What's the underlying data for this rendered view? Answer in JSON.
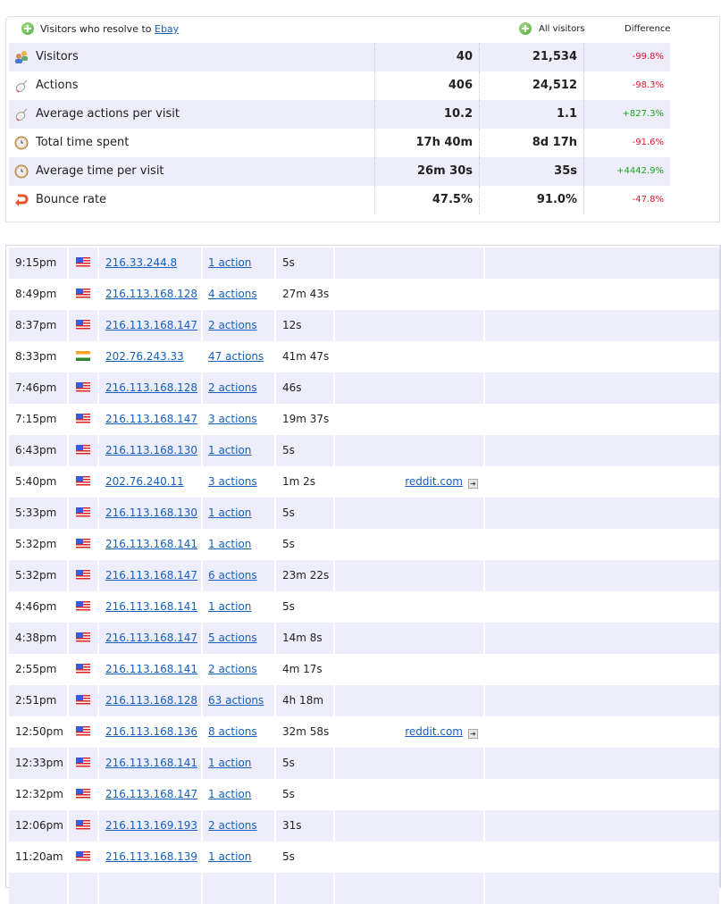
{
  "header": {
    "title": "Visitors who resolve to",
    "segment_link": "Ebay",
    "all_visitors": "All visitors",
    "difference": "Difference"
  },
  "metrics": [
    {
      "icon": "visitors-icon",
      "label": "Visitors",
      "segment": "40",
      "all": "21,534",
      "diff": "-99.8%",
      "trend": "neg"
    },
    {
      "icon": "mouse-icon",
      "label": "Actions",
      "segment": "406",
      "all": "24,512",
      "diff": "-98.3%",
      "trend": "neg"
    },
    {
      "icon": "mouse-icon",
      "label": "Average actions per visit",
      "segment": "10.2",
      "all": "1.1",
      "diff": "+827.3%",
      "trend": "pos"
    },
    {
      "icon": "clock-icon",
      "label": "Total time spent",
      "segment": "17h 40m",
      "all": "8d 17h",
      "diff": "-91.6%",
      "trend": "neg"
    },
    {
      "icon": "clock-icon",
      "label": "Average time per visit",
      "segment": "26m 30s",
      "all": "35s",
      "diff": "+4442.9%",
      "trend": "pos"
    },
    {
      "icon": "bounce-icon",
      "label": "Bounce rate",
      "segment": "47.5%",
      "all": "91.0%",
      "diff": "-47.8%",
      "trend": "neg"
    }
  ],
  "visits": [
    {
      "time": "9:15pm",
      "flag": "us",
      "ip": "216.33.244.8",
      "actions": "1 action",
      "duration": "5s",
      "referrer": ""
    },
    {
      "time": "8:49pm",
      "flag": "us",
      "ip": "216.113.168.128",
      "actions": "4 actions",
      "duration": "27m 43s",
      "referrer": ""
    },
    {
      "time": "8:37pm",
      "flag": "us",
      "ip": "216.113.168.147",
      "actions": "2 actions",
      "duration": "12s",
      "referrer": ""
    },
    {
      "time": "8:33pm",
      "flag": "in",
      "ip": "202.76.243.33",
      "actions": "47 actions",
      "duration": "41m 47s",
      "referrer": ""
    },
    {
      "time": "7:46pm",
      "flag": "us",
      "ip": "216.113.168.128",
      "actions": "2 actions",
      "duration": "46s",
      "referrer": ""
    },
    {
      "time": "7:15pm",
      "flag": "us",
      "ip": "216.113.168.147",
      "actions": "3 actions",
      "duration": "19m 37s",
      "referrer": ""
    },
    {
      "time": "6:43pm",
      "flag": "us",
      "ip": "216.113.168.130",
      "actions": "1 action",
      "duration": "5s",
      "referrer": ""
    },
    {
      "time": "5:40pm",
      "flag": "us",
      "ip": "202.76.240.11",
      "actions": "3 actions",
      "duration": "1m 2s",
      "referrer": "reddit.com"
    },
    {
      "time": "5:33pm",
      "flag": "us",
      "ip": "216.113.168.130",
      "actions": "1 action",
      "duration": "5s",
      "referrer": ""
    },
    {
      "time": "5:32pm",
      "flag": "us",
      "ip": "216.113.168.141",
      "actions": "1 action",
      "duration": "5s",
      "referrer": ""
    },
    {
      "time": "5:32pm",
      "flag": "us",
      "ip": "216.113.168.147",
      "actions": "6 actions",
      "duration": "23m 22s",
      "referrer": ""
    },
    {
      "time": "4:46pm",
      "flag": "us",
      "ip": "216.113.168.141",
      "actions": "1 action",
      "duration": "5s",
      "referrer": ""
    },
    {
      "time": "4:38pm",
      "flag": "us",
      "ip": "216.113.168.147",
      "actions": "5 actions",
      "duration": "14m 8s",
      "referrer": ""
    },
    {
      "time": "2:55pm",
      "flag": "us",
      "ip": "216.113.168.141",
      "actions": "2 actions",
      "duration": "4m 17s",
      "referrer": ""
    },
    {
      "time": "2:51pm",
      "flag": "us",
      "ip": "216.113.168.128",
      "actions": "63 actions",
      "duration": "4h 18m",
      "referrer": ""
    },
    {
      "time": "12:50pm",
      "flag": "us",
      "ip": "216.113.168.136",
      "actions": "8 actions",
      "duration": "32m 58s",
      "referrer": "reddit.com"
    },
    {
      "time": "12:33pm",
      "flag": "us",
      "ip": "216.113.168.141",
      "actions": "1 action",
      "duration": "5s",
      "referrer": ""
    },
    {
      "time": "12:32pm",
      "flag": "us",
      "ip": "216.113.168.147",
      "actions": "1 action",
      "duration": "5s",
      "referrer": ""
    },
    {
      "time": "12:06pm",
      "flag": "us",
      "ip": "216.113.169.193",
      "actions": "2 actions",
      "duration": "31s",
      "referrer": ""
    },
    {
      "time": "11:20am",
      "flag": "us",
      "ip": "216.113.168.139",
      "actions": "1 action",
      "duration": "5s",
      "referrer": ""
    }
  ]
}
